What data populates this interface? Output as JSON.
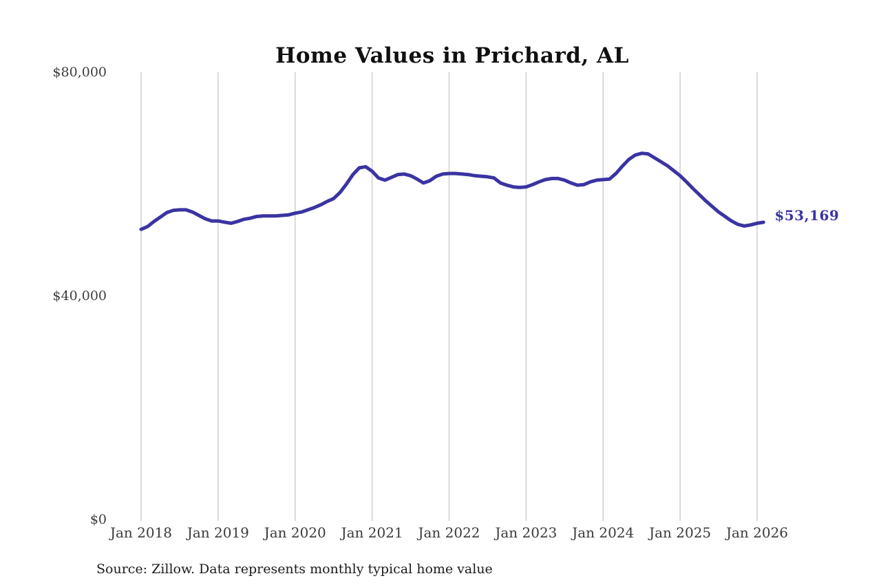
{
  "title": "Home Values in Prichard, AL",
  "source_note": "Source: Zillow. Data represents monthly typical home value",
  "end_label": "$53,169",
  "colors": {
    "line": "#3A34A2",
    "end_label_text": "#3A34A2",
    "grid": "#CBCBCB",
    "axis_text": "#3D3D3D",
    "title_text": "#101010"
  },
  "chart_data": {
    "type": "line",
    "title": "Home Values in Prichard, AL",
    "xlabel": "",
    "ylabel": "",
    "ylim": [
      0,
      80000
    ],
    "grid": "vertical-only",
    "legend": "none",
    "y_axis": {
      "ticks": [
        {
          "label": "$0",
          "value": 0
        },
        {
          "label": "$40,000",
          "value": 40000
        },
        {
          "label": "$80,000",
          "value": 80000
        }
      ]
    },
    "x_axis": {
      "tick_labels": [
        "Jan 2018",
        "Jan 2019",
        "Jan 2020",
        "Jan 2021",
        "Jan 2022",
        "Jan 2023",
        "Jan 2024",
        "Jan 2025",
        "Jan 2026"
      ],
      "months_between_ticks": 12
    },
    "series": [
      {
        "name": "Monthly typical home value",
        "start_month": "Jan 2018",
        "interval": "monthly",
        "values": [
          51900,
          52400,
          53300,
          54100,
          54900,
          55300,
          55400,
          55400,
          55000,
          54400,
          53800,
          53400,
          53400,
          53200,
          53000,
          53300,
          53700,
          53900,
          54200,
          54300,
          54300,
          54300,
          54400,
          54500,
          54800,
          55000,
          55400,
          55800,
          56300,
          56900,
          57400,
          58500,
          60000,
          61700,
          62900,
          63100,
          62300,
          61100,
          60700,
          61200,
          61700,
          61800,
          61500,
          60900,
          60200,
          60600,
          61400,
          61800,
          61900,
          61900,
          61800,
          61700,
          61500,
          61400,
          61300,
          61100,
          60200,
          59800,
          59500,
          59400,
          59500,
          59900,
          60400,
          60800,
          61000,
          61000,
          60700,
          60200,
          59800,
          59900,
          60400,
          60700,
          60800,
          60900,
          61900,
          63200,
          64400,
          65200,
          65500,
          65400,
          64700,
          64000,
          63300,
          62400,
          61500,
          60400,
          59200,
          58100,
          57000,
          56000,
          55000,
          54200,
          53400,
          52800,
          52500,
          52700,
          53000,
          53169
        ],
        "last_value": 53169,
        "last_value_label": "$53,169"
      }
    ]
  }
}
